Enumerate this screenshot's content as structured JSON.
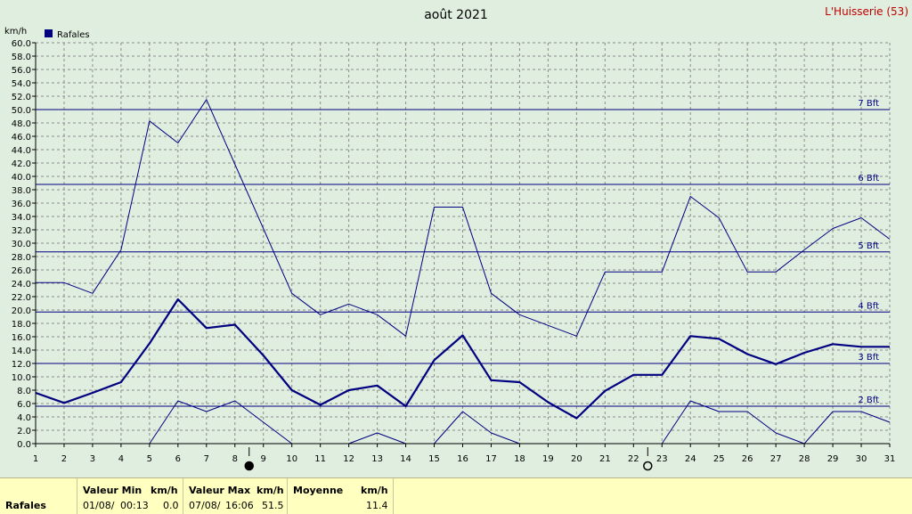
{
  "chart_data": {
    "type": "line",
    "title": "août 2021",
    "location": "L'Huisserie (53)",
    "unit": "km/h",
    "legend": "Rafales",
    "x": [
      1,
      2,
      3,
      4,
      5,
      6,
      7,
      8,
      9,
      10,
      11,
      12,
      13,
      14,
      15,
      16,
      17,
      18,
      19,
      20,
      21,
      22,
      23,
      24,
      25,
      26,
      27,
      28,
      29,
      30,
      31
    ],
    "xlim": [
      1,
      31
    ],
    "ylim": [
      0,
      60
    ],
    "yticks": [
      "0.0",
      "2.0",
      "4.0",
      "6.0",
      "8.0",
      "10.0",
      "12.0",
      "14.0",
      "16.0",
      "18.0",
      "20.0",
      "22.0",
      "24.0",
      "26.0",
      "28.0",
      "30.0",
      "32.0",
      "34.0",
      "36.0",
      "38.0",
      "40.0",
      "42.0",
      "44.0",
      "46.0",
      "48.0",
      "50.0",
      "52.0",
      "54.0",
      "56.0",
      "58.0",
      "60.0"
    ],
    "grid": true,
    "legend_position": "top-left",
    "series": [
      {
        "role": "max",
        "values": [
          24.1,
          24.1,
          22.5,
          29.0,
          48.3,
          45.0,
          51.5,
          41.8,
          32.2,
          22.5,
          19.3,
          20.9,
          19.3,
          16.1,
          35.4,
          35.4,
          22.5,
          19.3,
          17.7,
          16.1,
          25.7,
          25.7,
          25.7,
          37.0,
          33.8,
          25.7,
          25.7,
          29.0,
          32.2,
          33.8,
          30.6
        ]
      },
      {
        "role": "mean",
        "values": [
          7.6,
          6.1,
          7.6,
          9.2,
          15.0,
          21.6,
          17.3,
          17.8,
          13.2,
          8.0,
          5.8,
          8.0,
          8.7,
          5.6,
          12.5,
          16.2,
          9.5,
          9.2,
          6.2,
          3.8,
          7.9,
          10.3,
          10.3,
          16.1,
          15.7,
          13.4,
          11.9,
          13.6,
          14.9,
          14.5,
          14.5
        ]
      },
      {
        "role": "min",
        "values": [
          null,
          null,
          null,
          null,
          0,
          6.4,
          4.8,
          6.4,
          3.2,
          0,
          null,
          0,
          1.6,
          0,
          0,
          4.8,
          1.6,
          0,
          null,
          null,
          null,
          null,
          0,
          6.4,
          4.8,
          4.8,
          1.6,
          0,
          4.8,
          4.8,
          3.2
        ]
      }
    ],
    "beaufort_lines": [
      {
        "label": "2 Bft",
        "value": 5.6
      },
      {
        "label": "3 Bft",
        "value": 12.0
      },
      {
        "label": "4 Bft",
        "value": 19.7
      },
      {
        "label": "5 Bft",
        "value": 28.7
      },
      {
        "label": "6 Bft",
        "value": 38.8
      },
      {
        "label": "7 Bft",
        "value": 50.0
      }
    ],
    "moon_markers": [
      {
        "day": 8.5,
        "phase": "new"
      },
      {
        "day": 22.5,
        "phase": "full"
      }
    ]
  },
  "colors": {
    "background": "#e0eedf",
    "series": "#000080",
    "grid": "#8c8c8c",
    "beaufort_label": "#000080",
    "location": "#c00000",
    "footer_bg": "#ffffc0"
  },
  "footer": {
    "row_label": "Rafales",
    "min_header": "Valeur Min",
    "min_unit": "km/h",
    "min_date": "01/08/",
    "min_time": "00:13",
    "min_value": "0.0",
    "max_header": "Valeur Max",
    "max_unit": "km/h",
    "max_date": "07/08/",
    "max_time": "16:06",
    "max_value": "51.5",
    "mean_header": "Moyenne",
    "mean_unit": "km/h",
    "mean_value": "11.4"
  }
}
